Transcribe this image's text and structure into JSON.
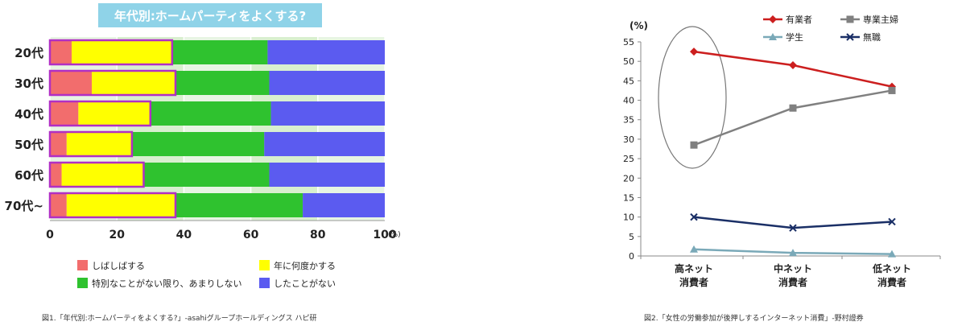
{
  "chart_data": [
    {
      "type": "bar",
      "stacked": true,
      "orientation": "horizontal",
      "title": "年代別:ホームパーティをよくする?",
      "categories": [
        "20代",
        "30代",
        "40代",
        "50代",
        "60代",
        "70代~"
      ],
      "series": [
        {
          "name": "しばしばする",
          "color": "#f26d6d",
          "values": [
            6.5,
            12.5,
            8.5,
            5,
            3.5,
            5
          ]
        },
        {
          "name": "年に何度かする",
          "color": "#ffff00",
          "values": [
            30,
            25,
            21.5,
            19.5,
            24.5,
            32.5
          ]
        },
        {
          "name": "特別なことがない限り、あまりしない",
          "color": "#2fc22f",
          "values": [
            28.5,
            28,
            36,
            39.5,
            37.5,
            38
          ]
        },
        {
          "name": "したことがない",
          "color": "#5b5bf0",
          "values": [
            35,
            34.5,
            34,
            36,
            34.5,
            24.5
          ]
        }
      ],
      "xlim": [
        0,
        100
      ],
      "xticks": [
        "0",
        "20",
        "40",
        "60",
        "80",
        "100"
      ],
      "xunit": "(%)",
      "grid": true,
      "legend_position": "bottom"
    },
    {
      "type": "line",
      "categories": [
        [
          "高ネット",
          "消費者"
        ],
        [
          "中ネット",
          "消費者"
        ],
        [
          "低ネット",
          "消費者"
        ]
      ],
      "series": [
        {
          "name": "有業者",
          "color": "#cc1f1f",
          "marker": "diamond",
          "values": [
            52.5,
            49,
            43.5
          ]
        },
        {
          "name": "専業主婦",
          "color": "#808080",
          "marker": "square",
          "values": [
            28.5,
            38,
            42.5
          ]
        },
        {
          "name": "学生",
          "color": "#7aa9b8",
          "marker": "triangle",
          "values": [
            1.7,
            0.8,
            0.5
          ]
        },
        {
          "name": "無職",
          "color": "#1a2f66",
          "marker": "x",
          "values": [
            10,
            7.2,
            8.8
          ]
        }
      ],
      "ylim": [
        0,
        55
      ],
      "yticks": [
        "0",
        "5",
        "10",
        "15",
        "20",
        "25",
        "30",
        "35",
        "40",
        "45",
        "50",
        "55"
      ],
      "yunit": "(%)",
      "legend_position": "top-right"
    }
  ],
  "captions": {
    "left": "図1.「年代別:ホームパーティをよくする?」-asahiグループホールディングス ハピ研",
    "right": "図2.「女性の労働参加が後押しするインターネット消費」-野村證券"
  }
}
